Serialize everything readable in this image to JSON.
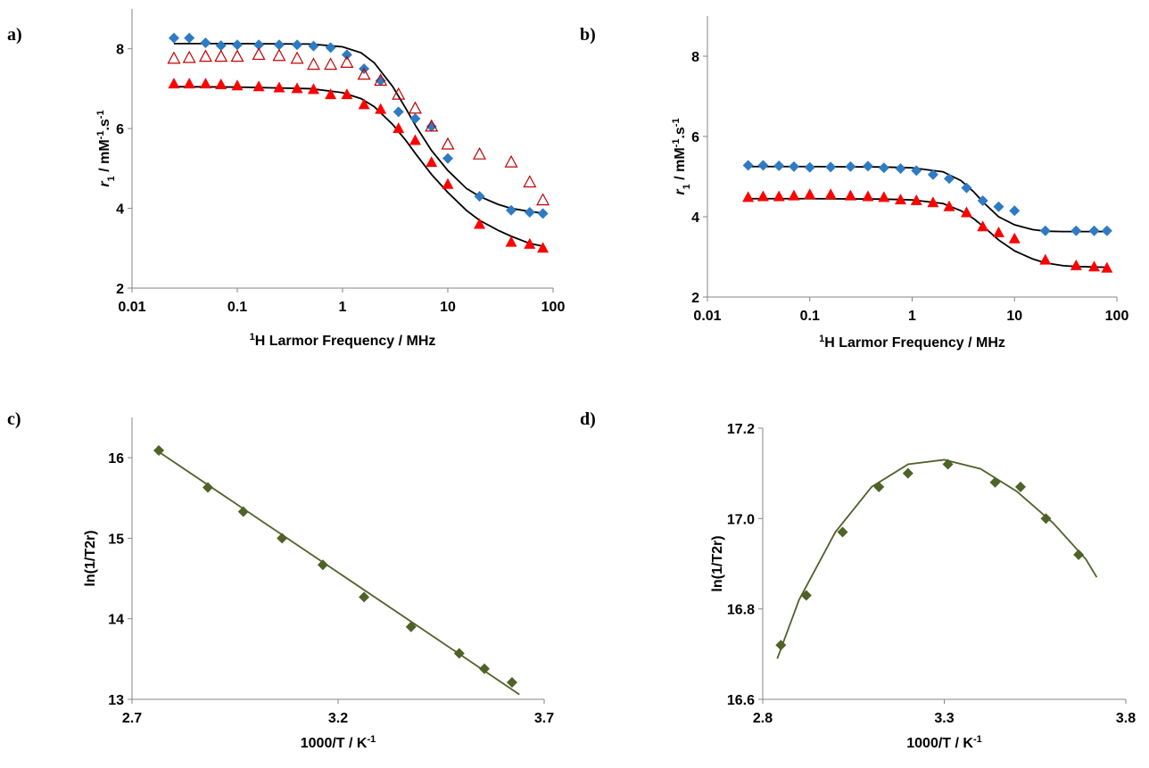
{
  "chart_data": [
    {
      "type": "scatter",
      "label": "a)",
      "x_label": [
        "1",
        "H Larmor Frequency / MHz"
      ],
      "x_label_style": [
        "sup",
        "normal"
      ],
      "y_label": [
        "r",
        "1",
        " / mM",
        "-1",
        ".s",
        "-1"
      ],
      "y_label_style": [
        "italic",
        "sub",
        "normal",
        "sup",
        "normal",
        "sup"
      ],
      "xlog": true,
      "xlim": [
        0.01,
        100
      ],
      "xticks": [
        0.01,
        0.1,
        1,
        10,
        100
      ],
      "ylim": [
        2,
        9
      ],
      "yticks": [
        2,
        4,
        6,
        8
      ],
      "series": [
        {
          "marker": "diamond",
          "color": "#2e7bc4",
          "x": [
            0.025,
            0.035,
            0.05,
            0.07,
            0.1,
            0.16,
            0.25,
            0.37,
            0.53,
            0.77,
            1.1,
            1.6,
            2.3,
            3.4,
            4.9,
            7,
            10,
            20,
            40,
            60,
            80
          ],
          "values": [
            8.27,
            8.27,
            8.15,
            8.08,
            8.1,
            8.1,
            8.1,
            8.1,
            8.07,
            8.03,
            7.85,
            7.5,
            7.2,
            6.42,
            6.25,
            6.05,
            5.25,
            4.3,
            3.95,
            3.9,
            3.87
          ]
        },
        {
          "marker": "triangle-open",
          "color": "#c00000",
          "x": [
            0.025,
            0.035,
            0.05,
            0.07,
            0.1,
            0.16,
            0.25,
            0.37,
            0.53,
            0.77,
            1.1,
            1.6,
            2.3,
            3.4,
            4.9,
            7,
            10,
            20,
            40,
            60,
            80
          ],
          "values": [
            7.75,
            7.77,
            7.8,
            7.8,
            7.8,
            7.85,
            7.82,
            7.75,
            7.6,
            7.6,
            7.65,
            7.35,
            7.2,
            6.85,
            6.5,
            6.05,
            5.6,
            5.35,
            5.15,
            4.65,
            4.2
          ]
        },
        {
          "marker": "triangle",
          "color": "#ff0000",
          "x": [
            0.025,
            0.035,
            0.05,
            0.07,
            0.1,
            0.16,
            0.25,
            0.37,
            0.53,
            0.77,
            1.1,
            1.6,
            2.3,
            3.4,
            4.9,
            7,
            10,
            20,
            40,
            60,
            80
          ],
          "values": [
            7.12,
            7.12,
            7.12,
            7.1,
            7.07,
            7.05,
            7.02,
            7.0,
            6.98,
            6.85,
            6.85,
            6.6,
            6.48,
            6.0,
            5.7,
            5.15,
            4.6,
            3.6,
            3.15,
            3.1,
            3.0
          ]
        },
        {
          "marker": "line",
          "color": "#000000",
          "x": [
            0.025,
            0.1,
            0.5,
            1,
            1.5,
            2,
            3,
            4,
            5,
            7,
            10,
            15,
            20,
            30,
            40,
            60,
            80
          ],
          "values": [
            8.13,
            8.13,
            8.12,
            8.05,
            7.9,
            7.65,
            7.05,
            6.5,
            6.05,
            5.45,
            4.95,
            4.5,
            4.3,
            4.1,
            4.0,
            3.92,
            3.88
          ]
        },
        {
          "marker": "line",
          "color": "#000000",
          "x": [
            0.025,
            0.1,
            0.5,
            1,
            1.5,
            2,
            3,
            4,
            5,
            7,
            10,
            15,
            20,
            30,
            40,
            60,
            80
          ],
          "values": [
            7.05,
            7.04,
            7.0,
            6.9,
            6.75,
            6.55,
            6.1,
            5.7,
            5.35,
            4.85,
            4.4,
            3.95,
            3.7,
            3.45,
            3.3,
            3.12,
            3.05
          ]
        }
      ]
    },
    {
      "type": "scatter",
      "label": "b)",
      "x_label": [
        "1",
        "H Larmor Frequency / MHz"
      ],
      "x_label_style": [
        "sup",
        "normal"
      ],
      "y_label": [
        "r",
        "1",
        " / mM",
        "-1",
        ".s",
        "-1"
      ],
      "y_label_style": [
        "italic",
        "sub",
        "normal",
        "sup",
        "normal",
        "sup"
      ],
      "xlog": true,
      "xlim": [
        0.01,
        100
      ],
      "xticks": [
        0.01,
        0.1,
        1,
        10,
        100
      ],
      "ylim": [
        2,
        9
      ],
      "yticks": [
        2,
        4,
        6,
        8
      ],
      "series": [
        {
          "marker": "diamond",
          "color": "#2e7bc4",
          "x": [
            0.025,
            0.035,
            0.05,
            0.07,
            0.1,
            0.16,
            0.25,
            0.37,
            0.53,
            0.77,
            1.1,
            1.6,
            2.3,
            3.4,
            4.9,
            7,
            10,
            20,
            40,
            60,
            80
          ],
          "values": [
            5.28,
            5.28,
            5.27,
            5.25,
            5.23,
            5.24,
            5.25,
            5.26,
            5.22,
            5.2,
            5.15,
            5.05,
            4.95,
            4.72,
            4.4,
            4.25,
            4.15,
            3.65,
            3.65,
            3.65,
            3.65
          ]
        },
        {
          "marker": "triangle",
          "color": "#ff0000",
          "x": [
            0.025,
            0.035,
            0.05,
            0.07,
            0.1,
            0.16,
            0.25,
            0.37,
            0.53,
            0.77,
            1.1,
            1.6,
            2.3,
            3.4,
            4.9,
            7,
            10,
            20,
            40,
            60,
            80
          ],
          "values": [
            4.48,
            4.5,
            4.5,
            4.52,
            4.55,
            4.55,
            4.52,
            4.5,
            4.48,
            4.42,
            4.4,
            4.35,
            4.25,
            4.1,
            3.75,
            3.6,
            3.45,
            2.92,
            2.78,
            2.75,
            2.72
          ]
        },
        {
          "marker": "line",
          "color": "#000000",
          "x": [
            0.025,
            0.1,
            0.5,
            1,
            2,
            3,
            4,
            5,
            7,
            10,
            15,
            20,
            30,
            40,
            60,
            80
          ],
          "values": [
            5.25,
            5.25,
            5.24,
            5.22,
            5.12,
            4.9,
            4.62,
            4.35,
            4.0,
            3.8,
            3.68,
            3.64,
            3.63,
            3.63,
            3.63,
            3.63
          ]
        },
        {
          "marker": "line",
          "color": "#000000",
          "x": [
            0.025,
            0.1,
            0.5,
            1,
            2,
            3,
            4,
            5,
            7,
            10,
            15,
            20,
            30,
            40,
            60,
            80
          ],
          "values": [
            4.45,
            4.45,
            4.44,
            4.42,
            4.33,
            4.15,
            3.95,
            3.75,
            3.42,
            3.15,
            2.95,
            2.85,
            2.78,
            2.76,
            2.75,
            2.74
          ]
        }
      ]
    },
    {
      "type": "scatter",
      "label": "c)",
      "x_label": [
        "1000/T / K",
        "-1"
      ],
      "x_label_style": [
        "normal",
        "sup"
      ],
      "y_label": [
        "ln(1/T2r)"
      ],
      "y_label_style": [
        "normal"
      ],
      "xlog": false,
      "xlim": [
        2.7,
        3.7
      ],
      "xticks": [
        2.7,
        3.2,
        3.7
      ],
      "ylim": [
        13,
        16.5
      ],
      "yticks": [
        13,
        14,
        15,
        16
      ],
      "series": [
        {
          "marker": "line",
          "color": "#4f6228",
          "x": [
            2.76,
            3.64
          ],
          "values": [
            16.09,
            13.06
          ]
        },
        {
          "marker": "diamond",
          "color": "#4f6228",
          "x": [
            2.765,
            2.884,
            2.97,
            3.064,
            3.163,
            3.263,
            3.377,
            3.494,
            3.555,
            3.622
          ],
          "values": [
            16.09,
            15.63,
            15.33,
            15.0,
            14.67,
            14.27,
            13.9,
            13.57,
            13.38,
            13.21
          ]
        }
      ]
    },
    {
      "type": "scatter",
      "label": "d)",
      "x_label": [
        "1000/T / K",
        "-1"
      ],
      "x_label_style": [
        "normal",
        "sup"
      ],
      "y_label": [
        "ln(1/T2r)"
      ],
      "y_label_style": [
        "normal"
      ],
      "xlog": false,
      "xlim": [
        2.8,
        3.8
      ],
      "xticks": [
        2.8,
        3.3,
        3.8
      ],
      "ylim": [
        16.6,
        17.2
      ],
      "yticks": [
        16.6,
        16.8,
        {
          "value": 17,
          "label": "17.0"
        },
        17.2
      ],
      "series": [
        {
          "marker": "line",
          "color": "#4f6228",
          "x": [
            2.84,
            2.9,
            3.0,
            3.1,
            3.2,
            3.3,
            3.4,
            3.5,
            3.6,
            3.69,
            3.72
          ],
          "values": [
            16.69,
            16.82,
            16.97,
            17.07,
            17.12,
            17.13,
            17.11,
            17.06,
            16.99,
            16.91,
            16.87
          ]
        },
        {
          "marker": "diamond",
          "color": "#4f6228",
          "x": [
            2.85,
            2.92,
            3.02,
            3.12,
            3.2,
            3.31,
            3.44,
            3.51,
            3.58,
            3.67
          ],
          "values": [
            16.72,
            16.83,
            16.97,
            17.07,
            17.1,
            17.12,
            17.08,
            17.07,
            17.0,
            16.92
          ]
        }
      ]
    }
  ]
}
